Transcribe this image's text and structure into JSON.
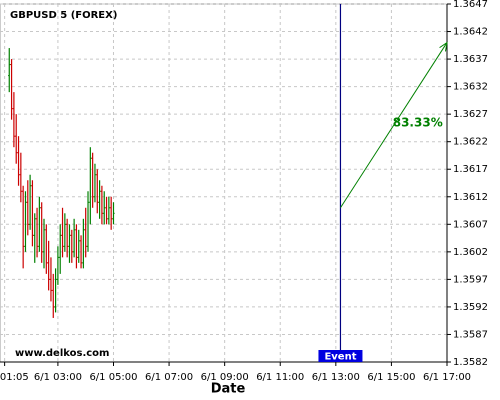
{
  "chart_data": {
    "type": "ohlc",
    "title": "GBPUSD 5 (FOREX)",
    "watermark": "www.delkos.com",
    "x_label": "Date",
    "up_color": "#008000",
    "down_color": "#cc0000",
    "grid": true,
    "x": [
      "6/1 01:15",
      "6/1 01:20",
      "6/1 01:25",
      "6/1 01:30",
      "6/1 01:35",
      "6/1 01:40",
      "6/1 01:45",
      "6/1 01:50",
      "6/1 01:55",
      "6/1 02:00",
      "6/1 02:05",
      "6/1 02:10",
      "6/1 02:15",
      "6/1 02:20",
      "6/1 02:25",
      "6/1 02:30",
      "6/1 02:35",
      "6/1 02:40",
      "6/1 02:45",
      "6/1 02:50",
      "6/1 02:55",
      "6/1 03:00",
      "6/1 03:05",
      "6/1 03:10",
      "6/1 03:15",
      "6/1 03:20",
      "6/1 03:25",
      "6/1 03:30",
      "6/1 03:35",
      "6/1 03:40",
      "6/1 03:45",
      "6/1 03:50",
      "6/1 03:55",
      "6/1 04:00",
      "6/1 04:05",
      "6/1 04:10",
      "6/1 04:15",
      "6/1 04:20",
      "6/1 04:25",
      "6/1 04:30",
      "6/1 04:35",
      "6/1 04:40",
      "6/1 04:45",
      "6/1 04:50",
      "6/1 04:55",
      "6/1 05:00"
    ],
    "open": [
      1.3634,
      1.3636,
      1.3628,
      1.3623,
      1.362,
      1.3616,
      1.3613,
      1.3603,
      1.3611,
      1.3607,
      1.3614,
      1.3605,
      1.3608,
      1.3603,
      1.361,
      1.3602,
      1.3606,
      1.36,
      1.3597,
      1.3595,
      1.3592,
      1.3597,
      1.3601,
      1.3605,
      1.3603,
      1.3607,
      1.3603,
      1.3605,
      1.3602,
      1.3606,
      1.3601,
      1.3604,
      1.36,
      1.3606,
      1.3603,
      1.3611,
      1.3619,
      1.3612,
      1.3616,
      1.3611,
      1.3613,
      1.3609,
      1.361,
      1.3608,
      1.361,
      1.3608
    ],
    "high": [
      1.3639,
      1.3637,
      1.3631,
      1.3627,
      1.3623,
      1.362,
      1.3614,
      1.3613,
      1.3615,
      1.3616,
      1.3615,
      1.3609,
      1.361,
      1.3612,
      1.3611,
      1.3608,
      1.3607,
      1.3604,
      1.3601,
      1.3598,
      1.3599,
      1.3603,
      1.3607,
      1.361,
      1.3609,
      1.3608,
      1.3607,
      1.3606,
      1.3608,
      1.3607,
      1.3606,
      1.3605,
      1.3608,
      1.361,
      1.3613,
      1.3621,
      1.362,
      1.3618,
      1.3617,
      1.3615,
      1.3614,
      1.3613,
      1.3612,
      1.3612,
      1.3612,
      1.3611
    ],
    "low": [
      1.3631,
      1.3626,
      1.3621,
      1.3618,
      1.3614,
      1.3611,
      1.3599,
      1.3602,
      1.3605,
      1.3606,
      1.3603,
      1.36,
      1.3601,
      1.3602,
      1.36,
      1.3599,
      1.3598,
      1.3595,
      1.3593,
      1.359,
      1.3591,
      1.3596,
      1.3598,
      1.3601,
      1.3602,
      1.3601,
      1.36,
      1.36,
      1.3601,
      1.3599,
      1.36,
      1.3599,
      1.3599,
      1.3601,
      1.3602,
      1.3607,
      1.361,
      1.3611,
      1.3609,
      1.3608,
      1.3607,
      1.3607,
      1.3607,
      1.3607,
      1.3606,
      1.3607
    ],
    "close": [
      1.3636,
      1.3628,
      1.3623,
      1.362,
      1.3616,
      1.3613,
      1.3603,
      1.3611,
      1.3607,
      1.3614,
      1.3605,
      1.3608,
      1.3603,
      1.361,
      1.3602,
      1.3606,
      1.36,
      1.3597,
      1.3595,
      1.3592,
      1.3597,
      1.3601,
      1.3605,
      1.3603,
      1.3607,
      1.3603,
      1.3605,
      1.3602,
      1.3606,
      1.3601,
      1.3604,
      1.36,
      1.3606,
      1.3603,
      1.3611,
      1.3619,
      1.3612,
      1.3616,
      1.3611,
      1.3613,
      1.3609,
      1.361,
      1.3608,
      1.361,
      1.3608,
      1.3609
    ],
    "xlim": [
      "6/1 00:55",
      "6/1 17:00"
    ],
    "xticks": [
      "6/1 01:05",
      "6/1 03:00",
      "6/1 05:00",
      "6/1 07:00",
      "6/1 09:00",
      "6/1 11:00",
      "6/1 13:00",
      "6/1 15:00",
      "6/1 17:00"
    ],
    "ylim": [
      1.3582,
      1.3647
    ],
    "yticks": [
      1.3582,
      1.3587,
      1.3592,
      1.3597,
      1.3602,
      1.3607,
      1.3612,
      1.3617,
      1.3622,
      1.3627,
      1.3632,
      1.3637,
      1.3642,
      1.3647
    ],
    "event": {
      "label": "Event",
      "x": "6/1 13:10",
      "line_color": "#000080",
      "label_color": "#0000e0"
    },
    "forecast": {
      "x": [
        "6/1 13:10",
        "6/1 17:00"
      ],
      "y": [
        1.361,
        1.364
      ],
      "label": "83.33%",
      "color": "#008000"
    }
  }
}
